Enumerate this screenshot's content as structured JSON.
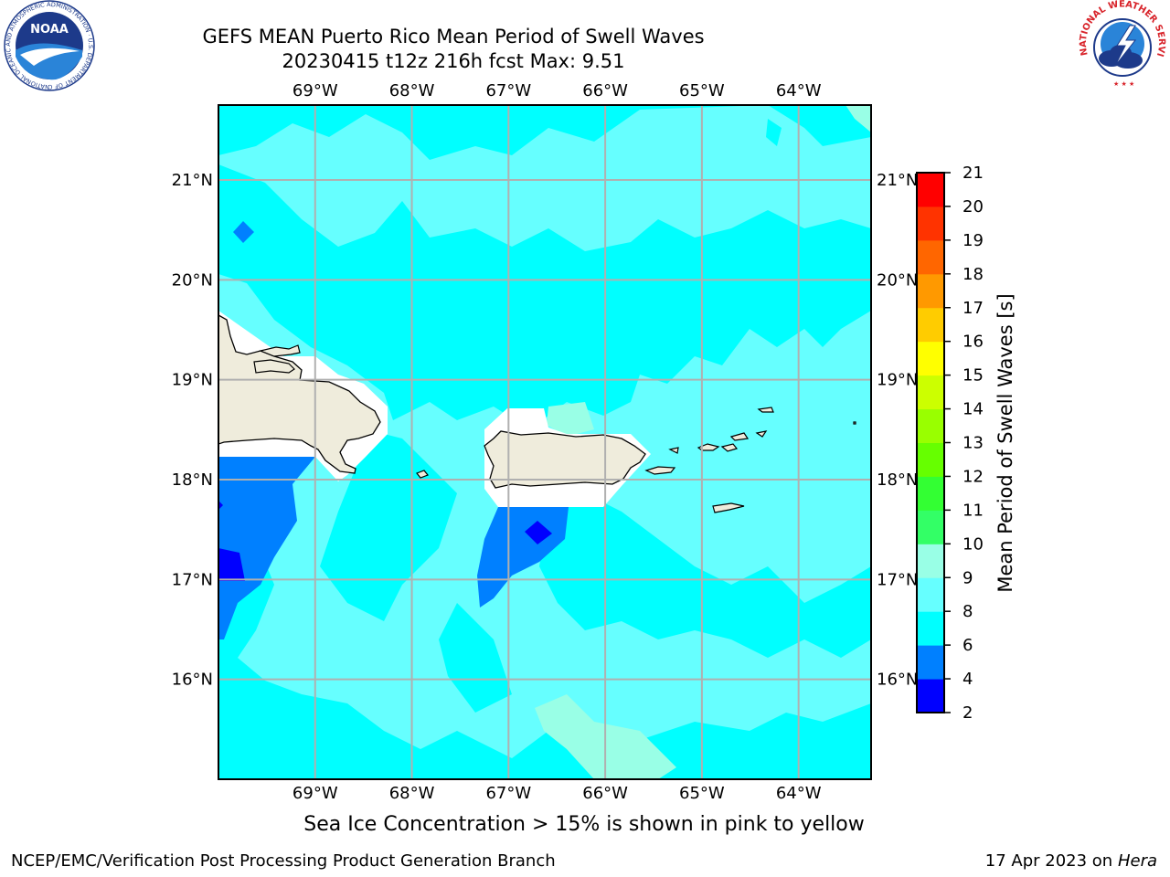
{
  "title": {
    "line1": "GEFS MEAN Puerto Rico Mean Period of Swell Waves",
    "line2": "20230415 t12z 216h fcst   Max: 9.51"
  },
  "map": {
    "lon_labels": [
      "69°W",
      "68°W",
      "67°W",
      "66°W",
      "65°W",
      "64°W"
    ],
    "lat_labels": [
      "21°N",
      "20°N",
      "19°N",
      "18°N",
      "17°N",
      "16°N"
    ],
    "lon_values": [
      -69,
      -68,
      -67,
      -66,
      -65,
      -64
    ],
    "lat_values": [
      21,
      20,
      19,
      18,
      17,
      16
    ],
    "lon_range": [
      -70,
      -63.25
    ],
    "lat_range": [
      15,
      21.75
    ],
    "land_color": "#efecdc",
    "grid_color": "#b0b0b0"
  },
  "colorbar": {
    "label": "Mean Period of Swell Waves [s]",
    "tick_labels": [
      "2",
      "4",
      "6",
      "8",
      "9",
      "10",
      "11",
      "12",
      "13",
      "14",
      "15",
      "16",
      "17",
      "18",
      "19",
      "20",
      "21"
    ],
    "levels": [
      2,
      4,
      6,
      8,
      9,
      10,
      11,
      12,
      13,
      14,
      15,
      16,
      17,
      18,
      19,
      20,
      21
    ],
    "colors": [
      "#0000ff",
      "#0080ff",
      "#00ffff",
      "#66ffff",
      "#99ffe6",
      "#33ff66",
      "#33ff33",
      "#66ff00",
      "#99ff00",
      "#ccff00",
      "#ffff00",
      "#ffcc00",
      "#ff9900",
      "#ff6600",
      "#ff3300",
      "#ff0000"
    ]
  },
  "logos": {
    "noaa_text": "NOAA",
    "noaa_ring": "NATIONAL OCEANIC AND ATMOSPHERIC ADMINISTRATION · U.S. DEPARTMENT OF COMMERCE",
    "nws_ring": "NATIONAL WEATHER SERVICE"
  },
  "caption": "Sea Ice Concentration > 15% is shown in pink to yellow",
  "footer": {
    "left": "NCEP/EMC/Verification Post Processing Product Generation Branch",
    "right_date": "17 Apr 2023 on",
    "right_machine": "Hera"
  }
}
